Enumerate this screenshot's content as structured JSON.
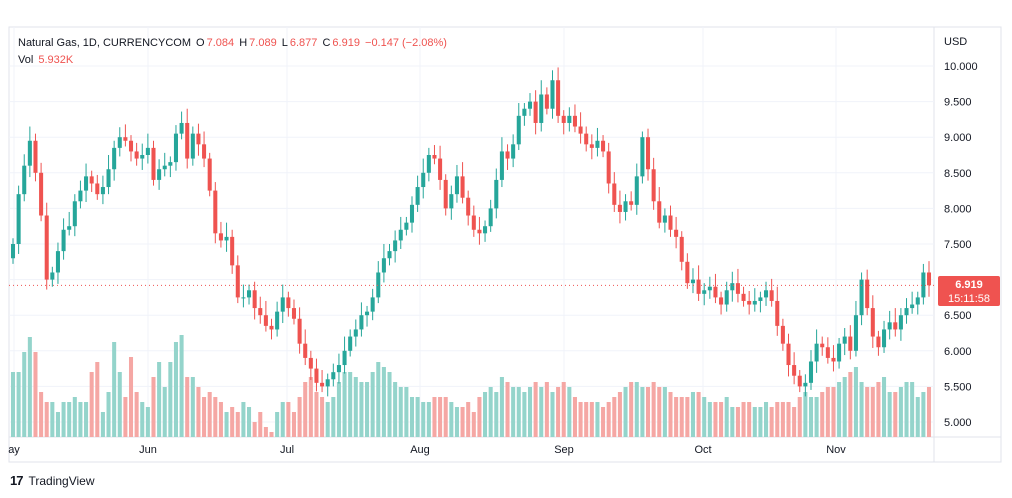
{
  "legend": {
    "symbol": "Natural Gas, 1D, CURRENCYCOM",
    "o_label": "O",
    "o_value": "7.084",
    "h_label": "H",
    "h_value": "7.089",
    "l_label": "L",
    "l_value": "6.877",
    "c_label": "C",
    "c_value": "6.919",
    "change": "−0.147 (−2.08%)",
    "vol_label": "Vol",
    "vol_value": "5.932K"
  },
  "axis": {
    "currency": "USD",
    "y_ticks": [
      "10.000",
      "9.500",
      "9.000",
      "8.500",
      "8.000",
      "7.500",
      "7.000",
      "6.500",
      "6.000",
      "5.500",
      "5.000"
    ],
    "x_ticks": [
      "ay",
      "Jun",
      "Jul",
      "Aug",
      "Sep",
      "Oct",
      "Nov"
    ]
  },
  "last_price": {
    "price": "6.919",
    "countdown": "15:11:58"
  },
  "brand": {
    "name": "TradingView",
    "logo_icon": "tradingview-logo-icon"
  },
  "colors": {
    "up": "#26a69a",
    "down": "#ef5350",
    "vol_up": "#94d4cb",
    "vol_down": "#f5a7a4",
    "grid": "#f0f3fa"
  },
  "chart_data": {
    "type": "candlestick",
    "ylim": [
      4.8,
      10.3
    ],
    "x_label_positions_dates": [
      "May",
      "Jun 1",
      "Jul 1",
      "Aug 1",
      "Sep 1",
      "Oct 1",
      "Nov 1"
    ],
    "close_series": [
      7.5,
      8.2,
      8.6,
      8.95,
      8.5,
      7.9,
      7.0,
      7.1,
      7.4,
      7.7,
      7.75,
      8.1,
      8.25,
      8.45,
      8.35,
      8.2,
      8.3,
      8.55,
      8.85,
      9.0,
      8.95,
      8.8,
      8.7,
      8.75,
      8.85,
      8.4,
      8.55,
      8.6,
      8.65,
      9.05,
      9.2,
      8.7,
      9.05,
      8.9,
      8.7,
      8.25,
      7.65,
      7.55,
      7.6,
      7.2,
      6.75,
      6.75,
      6.85,
      6.6,
      6.5,
      6.35,
      6.3,
      6.55,
      6.75,
      6.6,
      6.45,
      6.1,
      5.9,
      5.75,
      5.55,
      5.5,
      5.6,
      5.7,
      5.8,
      6.0,
      6.2,
      6.3,
      6.5,
      6.55,
      6.75,
      7.1,
      7.3,
      7.4,
      7.55,
      7.7,
      7.8,
      8.05,
      8.3,
      8.5,
      8.75,
      8.7,
      8.4,
      8.0,
      8.2,
      8.45,
      8.15,
      7.9,
      7.7,
      7.65,
      7.75,
      8.0,
      8.4,
      8.8,
      8.7,
      8.9,
      9.3,
      9.4,
      9.5,
      9.2,
      9.6,
      9.4,
      9.8,
      9.3,
      9.2,
      9.3,
      9.15,
      9.05,
      8.9,
      8.85,
      8.95,
      8.8,
      8.35,
      8.05,
      7.95,
      8.1,
      8.05,
      8.45,
      9.0,
      8.55,
      8.1,
      7.8,
      7.9,
      7.7,
      7.6,
      7.25,
      6.95,
      7.0,
      6.8,
      6.85,
      6.9,
      6.75,
      6.65,
      6.85,
      6.95,
      6.8,
      6.7,
      6.65,
      6.7,
      6.75,
      6.85,
      6.7,
      6.35,
      6.1,
      5.8,
      5.65,
      5.5,
      5.55,
      5.85,
      6.1,
      6.05,
      5.9,
      5.85,
      6.1,
      6.2,
      6.0,
      6.5,
      7.0,
      6.6,
      6.2,
      6.05,
      6.3,
      6.4,
      6.3,
      6.5,
      6.6,
      6.65,
      6.75,
      7.1,
      6.92
    ],
    "volume_series": [
      5.6,
      5.6,
      5.8,
      5.95,
      5.8,
      5.4,
      5.3,
      5.3,
      5.2,
      5.3,
      5.3,
      5.35,
      5.3,
      5.3,
      5.6,
      5.7,
      5.2,
      5.4,
      5.9,
      5.6,
      5.35,
      5.75,
      5.4,
      5.3,
      5.25,
      5.55,
      5.7,
      5.45,
      5.7,
      5.9,
      6.25,
      5.55,
      5.55,
      5.45,
      5.35,
      5.4,
      5.35,
      5.3,
      5.2,
      5.25,
      5.2,
      5.3,
      5.25,
      5.1,
      5.2,
      5.05,
      5.0,
      5.2,
      5.3,
      5.3,
      5.2,
      5.35,
      5.5,
      5.55,
      5.4,
      5.35,
      5.3,
      5.35,
      5.5,
      5.6,
      5.6,
      5.55,
      5.5,
      5.5,
      5.6,
      5.7,
      5.65,
      5.6,
      5.5,
      5.45,
      5.45,
      5.35,
      5.35,
      5.3,
      5.3,
      5.35,
      5.35,
      5.35,
      5.3,
      5.25,
      5.25,
      5.3,
      5.2,
      5.35,
      5.4,
      5.45,
      5.4,
      5.55,
      5.5,
      5.45,
      5.45,
      5.4,
      5.45,
      5.5,
      5.45,
      5.5,
      5.4,
      5.45,
      5.5,
      5.45,
      5.35,
      5.3,
      5.3,
      5.3,
      5.3,
      5.25,
      5.3,
      5.35,
      5.4,
      5.45,
      5.5,
      5.5,
      5.45,
      5.45,
      5.5,
      5.45,
      5.45,
      5.4,
      5.35,
      5.35,
      5.35,
      5.4,
      5.4,
      5.35,
      5.3,
      5.3,
      5.3,
      5.35,
      5.25,
      5.25,
      5.3,
      5.3,
      5.25,
      5.25,
      5.3,
      5.25,
      5.3,
      5.3,
      5.3,
      5.25,
      5.35,
      5.4,
      5.35,
      5.35,
      5.4,
      5.45,
      5.45,
      5.5,
      5.55,
      5.6,
      5.65,
      5.5,
      5.45,
      5.45,
      5.5,
      5.55,
      5.4,
      5.4,
      5.45,
      5.5,
      5.5,
      5.35,
      5.4,
      5.45
    ]
  }
}
